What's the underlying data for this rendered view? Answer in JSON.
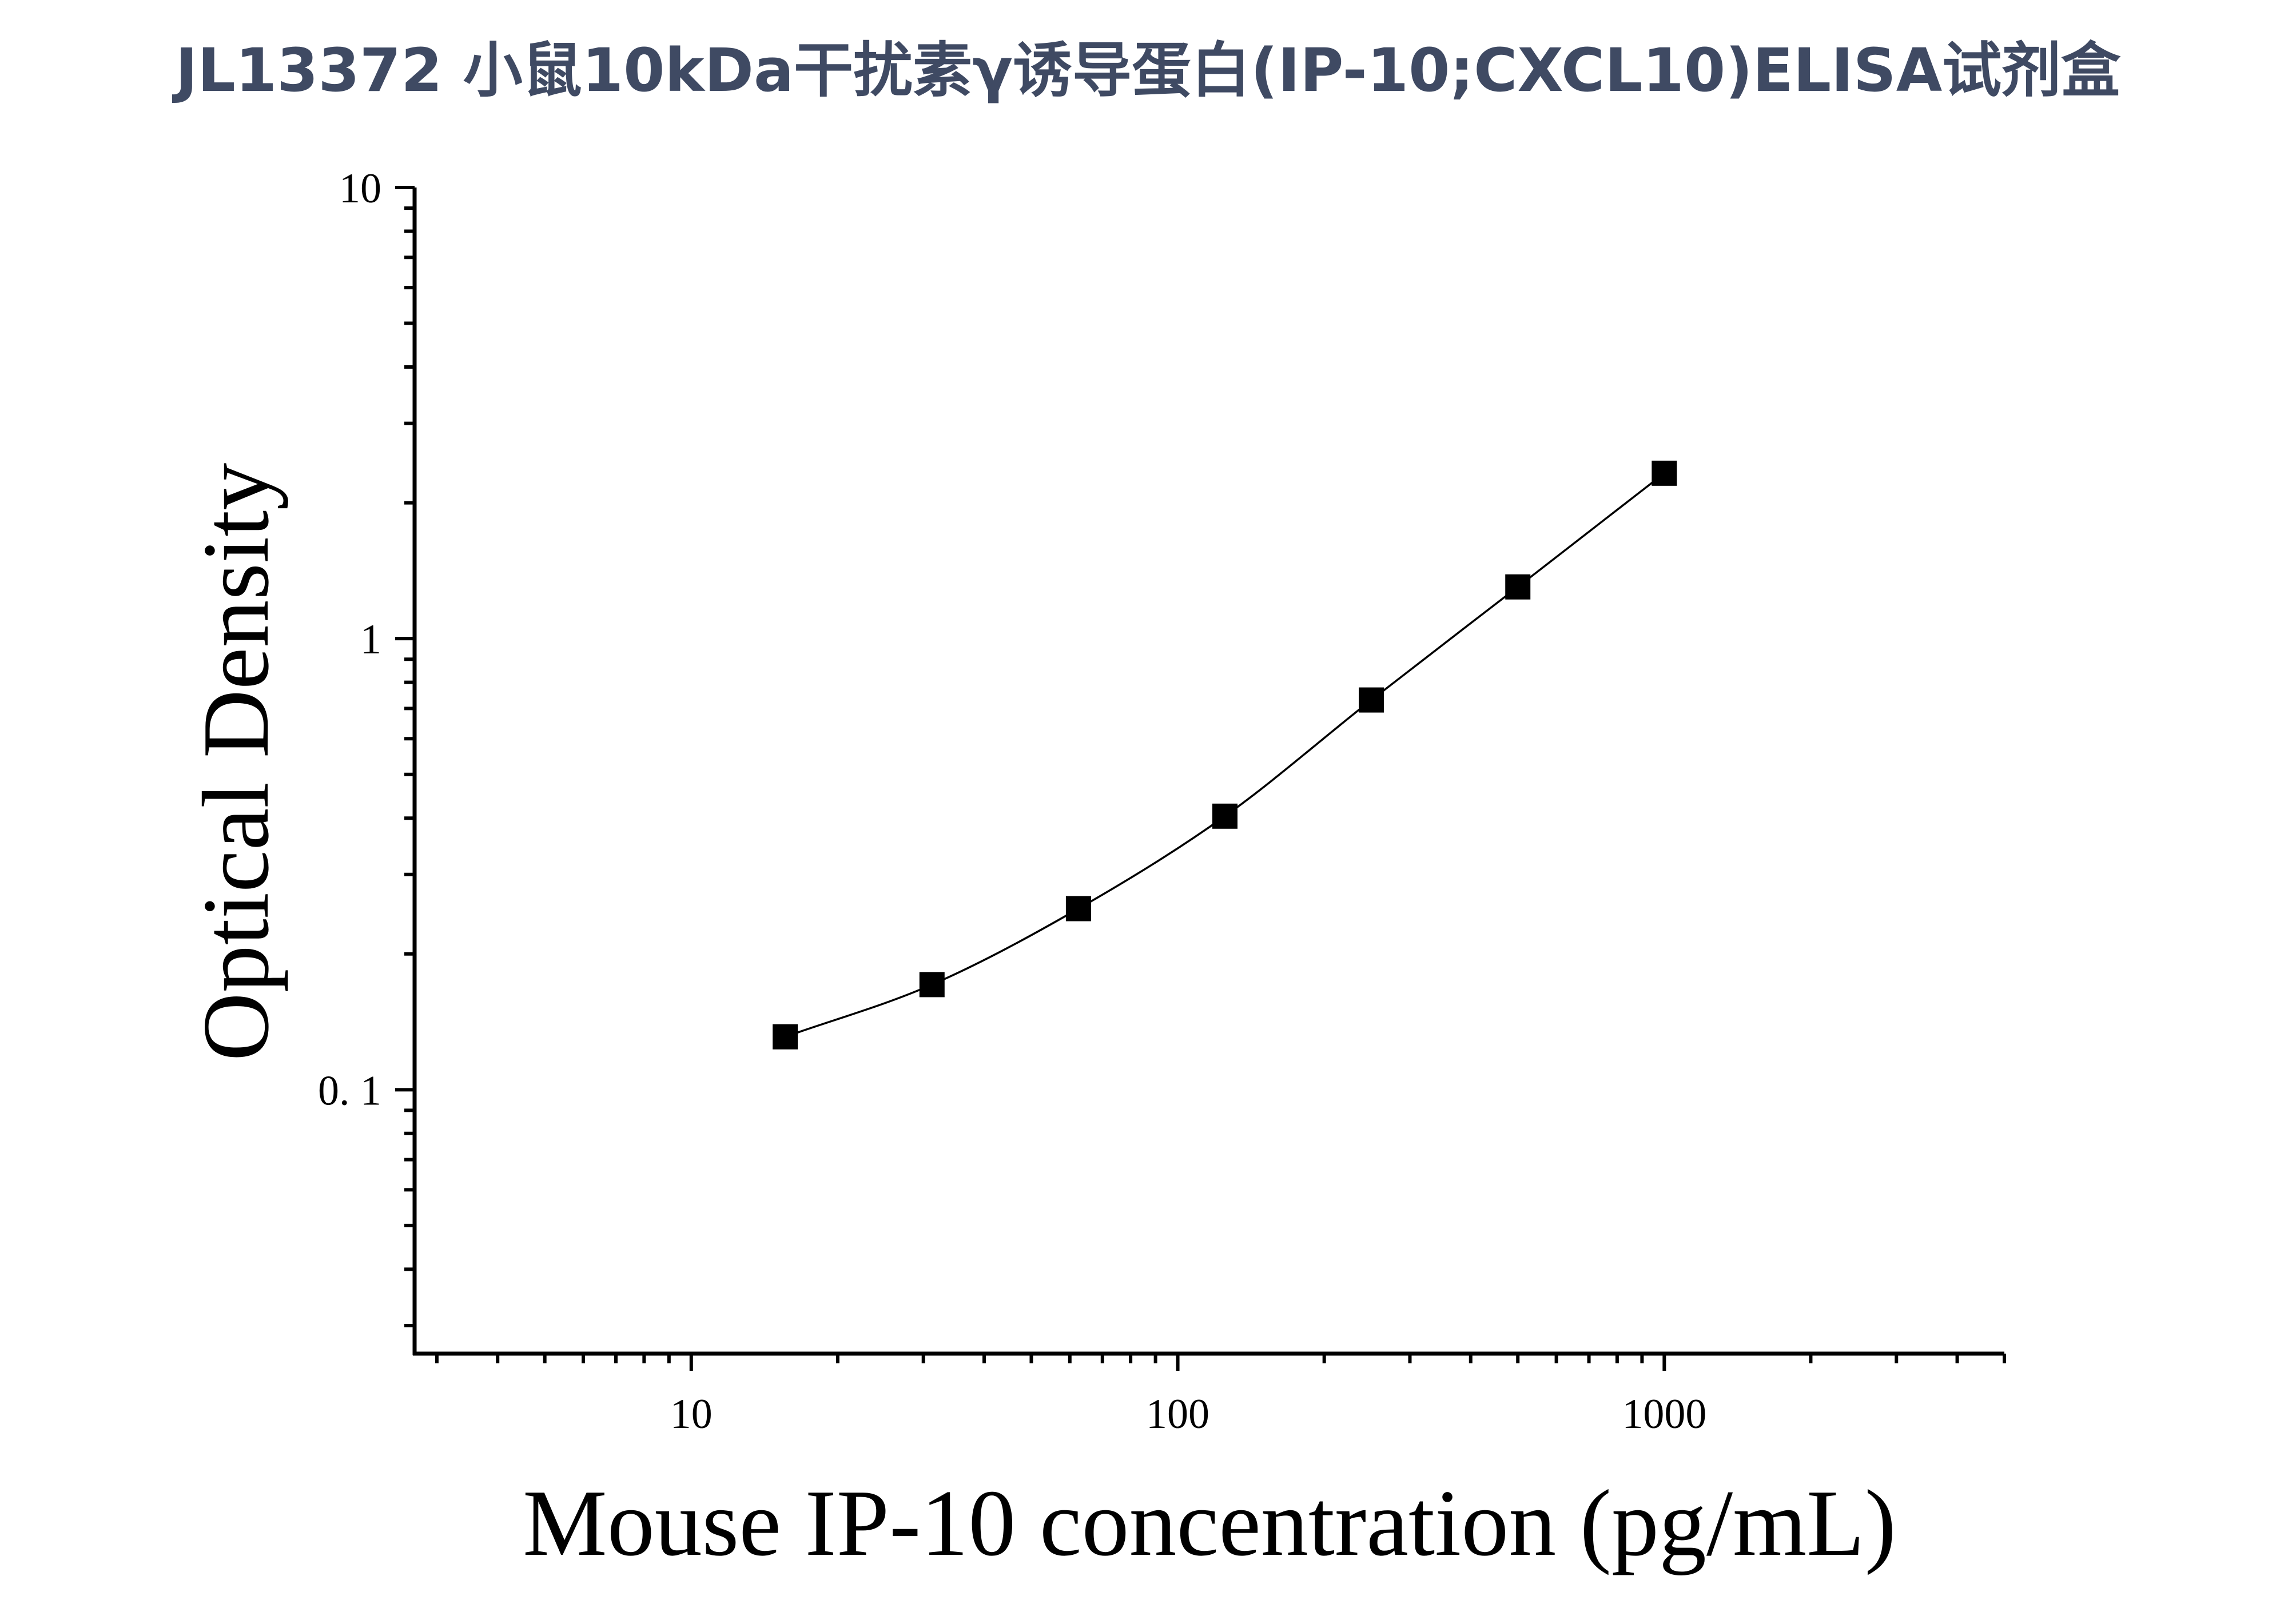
{
  "title": "JL13372 小鼠10kDa干扰素γ诱导蛋白(IP-10;CXCL10)ELISA试剂盒",
  "chart_data": {
    "type": "scatter",
    "title": "JL13372 小鼠10kDa干扰素γ诱导蛋白(IP-10;CXCL10)ELISA试剂盒",
    "xlabel": "Mouse IP-10 concentration (pg/mL)",
    "ylabel": "Optical Density",
    "x_scale": "log",
    "y_scale": "log",
    "xlim": [
      2.7,
      5000
    ],
    "ylim": [
      0.026,
      10
    ],
    "x_ticks": [
      10,
      100,
      1000
    ],
    "x_tick_labels": [
      "10",
      "100",
      "1000"
    ],
    "y_ticks": [
      0.1,
      1,
      10
    ],
    "y_tick_labels": [
      "0. 1",
      "1",
      "10"
    ],
    "grid": false,
    "series": [
      {
        "marker": "square",
        "x": [
          15.6,
          31.25,
          62.5,
          125,
          250,
          500,
          1000
        ],
        "y": [
          0.131,
          0.171,
          0.252,
          0.404,
          0.731,
          1.302,
          2.326
        ],
        "fit_line": true
      }
    ],
    "colors": {
      "title": "#3f4a63",
      "ink": "#000000"
    }
  }
}
